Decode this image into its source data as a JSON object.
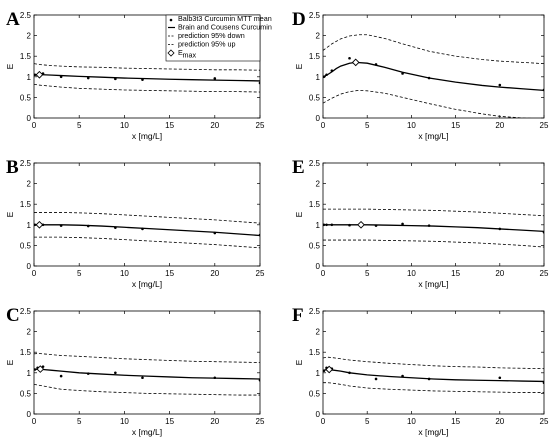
{
  "chart_data": [
    {
      "type": "line",
      "panel_label": "A",
      "xlabel": "x [mg/L]",
      "ylabel": "E",
      "xlim": [
        0,
        25
      ],
      "ylim": [
        0,
        2.5
      ],
      "x_ticks": [
        "0",
        "5",
        "10",
        "15",
        "20",
        "25"
      ],
      "y_ticks": [
        "0",
        "0.5",
        "1",
        "1.5",
        "2",
        "2.5"
      ],
      "grid": false,
      "legend_position": "top-right",
      "legend": [
        "Balb3t3 Curcumin MTT mean",
        "Brain and Cousens Curcumin",
        "prediction 95% down",
        "prediction 95% up",
        "E",
        "max"
      ],
      "series": [
        {
          "name": "Balb3t3 Curcumin MTT mean",
          "style": "markers",
          "x": [
            0.1,
            0.4,
            1,
            3,
            6,
            9,
            12,
            20,
            25
          ],
          "y": [
            1.05,
            1.04,
            1.08,
            1.0,
            0.97,
            0.95,
            0.93,
            0.96,
            0.85
          ]
        },
        {
          "name": "Brain and Cousens Curcumin",
          "style": "solid",
          "x": [
            0,
            0.5,
            1,
            2,
            3,
            5,
            7.5,
            10,
            12.5,
            15,
            17.5,
            20,
            22.5,
            25
          ],
          "y": [
            1.05,
            1.05,
            1.05,
            1.04,
            1.03,
            1.01,
            0.99,
            0.97,
            0.955,
            0.94,
            0.93,
            0.92,
            0.91,
            0.9
          ]
        },
        {
          "name": "prediction 95% down",
          "style": "dashed",
          "x": [
            0,
            0.5,
            1,
            2,
            3,
            5,
            7.5,
            10,
            12.5,
            15,
            17.5,
            20,
            22.5,
            25
          ],
          "y": [
            0.82,
            0.8,
            0.79,
            0.77,
            0.75,
            0.72,
            0.7,
            0.68,
            0.67,
            0.66,
            0.65,
            0.64,
            0.64,
            0.63
          ]
        },
        {
          "name": "prediction 95% up",
          "style": "dashed",
          "x": [
            0,
            0.5,
            1,
            2,
            3,
            5,
            7.5,
            10,
            12.5,
            15,
            17.5,
            20,
            22.5,
            25
          ],
          "y": [
            1.32,
            1.3,
            1.29,
            1.27,
            1.26,
            1.24,
            1.23,
            1.21,
            1.2,
            1.19,
            1.18,
            1.17,
            1.17,
            1.16
          ]
        },
        {
          "name": "E",
          "style": "diamond",
          "x": [
            0.6
          ],
          "y": [
            1.05
          ]
        }
      ]
    },
    {
      "type": "line",
      "panel_label": "B",
      "xlabel": "x [mg/L]",
      "ylabel": "E",
      "xlim": [
        0,
        25
      ],
      "ylim": [
        0,
        2.5
      ],
      "x_ticks": [
        "0",
        "5",
        "10",
        "15",
        "20",
        "25"
      ],
      "y_ticks": [
        "0",
        "0.5",
        "1",
        "1.5",
        "2",
        "2.5"
      ],
      "grid": false,
      "series": [
        {
          "style": "markers",
          "x": [
            0.1,
            0.4,
            1,
            3,
            6,
            9,
            12,
            20,
            25
          ],
          "y": [
            1.0,
            1.0,
            1.0,
            0.98,
            0.97,
            0.93,
            0.9,
            0.8,
            0.75
          ]
        },
        {
          "style": "solid",
          "x": [
            0,
            0.5,
            1,
            2,
            3,
            5,
            7.5,
            10,
            12.5,
            15,
            17.5,
            20,
            22.5,
            25
          ],
          "y": [
            1.0,
            1.0,
            1.0,
            1.0,
            1.0,
            0.99,
            0.97,
            0.94,
            0.91,
            0.88,
            0.85,
            0.82,
            0.78,
            0.74
          ]
        },
        {
          "style": "dashed",
          "x": [
            0,
            0.5,
            1,
            2,
            3,
            5,
            7.5,
            10,
            12.5,
            15,
            17.5,
            20,
            22.5,
            25
          ],
          "y": [
            0.7,
            0.7,
            0.7,
            0.7,
            0.7,
            0.69,
            0.67,
            0.64,
            0.61,
            0.58,
            0.55,
            0.52,
            0.48,
            0.44
          ]
        },
        {
          "style": "dashed",
          "x": [
            0,
            0.5,
            1,
            2,
            3,
            5,
            7.5,
            10,
            12.5,
            15,
            17.5,
            20,
            22.5,
            25
          ],
          "y": [
            1.3,
            1.3,
            1.3,
            1.3,
            1.3,
            1.29,
            1.27,
            1.24,
            1.21,
            1.18,
            1.15,
            1.12,
            1.08,
            1.04
          ]
        },
        {
          "style": "diamond",
          "x": [
            0.6
          ],
          "y": [
            1.0
          ]
        }
      ]
    },
    {
      "type": "line",
      "panel_label": "C",
      "xlabel": "x [mg/L]",
      "ylabel": "E",
      "xlim": [
        0,
        25
      ],
      "ylim": [
        0,
        2.5
      ],
      "x_ticks": [
        "0",
        "5",
        "10",
        "15",
        "20",
        "25"
      ],
      "y_ticks": [
        "0",
        "0.5",
        "1",
        "1.5",
        "2",
        "2.5"
      ],
      "grid": false,
      "series": [
        {
          "style": "markers",
          "x": [
            0.1,
            0.4,
            1,
            3,
            6,
            9,
            12,
            20,
            25
          ],
          "y": [
            1.08,
            1.12,
            1.15,
            0.92,
            0.98,
            1.0,
            0.88,
            0.88,
            0.82
          ]
        },
        {
          "style": "solid",
          "x": [
            0,
            0.5,
            1,
            2,
            3,
            5,
            7.5,
            10,
            12.5,
            15,
            17.5,
            20,
            22.5,
            25
          ],
          "y": [
            1.08,
            1.09,
            1.08,
            1.06,
            1.04,
            1.0,
            0.97,
            0.94,
            0.92,
            0.9,
            0.88,
            0.87,
            0.86,
            0.85
          ]
        },
        {
          "style": "dashed",
          "x": [
            0,
            0.5,
            1,
            2,
            3,
            5,
            7.5,
            10,
            12.5,
            15,
            17.5,
            20,
            22.5,
            25
          ],
          "y": [
            0.72,
            0.7,
            0.68,
            0.64,
            0.6,
            0.57,
            0.54,
            0.52,
            0.5,
            0.49,
            0.48,
            0.47,
            0.46,
            0.46
          ]
        },
        {
          "style": "dashed",
          "x": [
            0,
            0.5,
            1,
            2,
            3,
            5,
            7.5,
            10,
            12.5,
            15,
            17.5,
            20,
            22.5,
            25
          ],
          "y": [
            1.46,
            1.47,
            1.46,
            1.44,
            1.42,
            1.4,
            1.37,
            1.34,
            1.32,
            1.3,
            1.28,
            1.27,
            1.26,
            1.25
          ]
        },
        {
          "style": "diamond",
          "x": [
            0.7
          ],
          "y": [
            1.09
          ]
        }
      ]
    },
    {
      "type": "line",
      "panel_label": "D",
      "xlabel": "x [mg/L]",
      "ylabel": "E",
      "xlim": [
        0,
        25
      ],
      "ylim": [
        0,
        2.5
      ],
      "x_ticks": [
        "0",
        "5",
        "10",
        "15",
        "20",
        "25"
      ],
      "y_ticks": [
        "0",
        "0.5",
        "1",
        "1.5",
        "2",
        "2.5"
      ],
      "grid": false,
      "series": [
        {
          "style": "markers",
          "x": [
            0.1,
            0.4,
            1,
            3,
            6,
            9,
            12,
            20,
            25
          ],
          "y": [
            1.0,
            1.05,
            1.15,
            1.45,
            1.3,
            1.08,
            0.97,
            0.8,
            0.68
          ]
        },
        {
          "style": "solid",
          "x": [
            0,
            0.5,
            1,
            1.5,
            2,
            3,
            3.7,
            5,
            7,
            9,
            12,
            15,
            18,
            20,
            22.5,
            25
          ],
          "y": [
            1.0,
            1.05,
            1.12,
            1.2,
            1.26,
            1.33,
            1.35,
            1.33,
            1.23,
            1.11,
            0.97,
            0.87,
            0.79,
            0.75,
            0.71,
            0.67
          ]
        },
        {
          "style": "dashed",
          "x": [
            0,
            0.5,
            1,
            2,
            3,
            4,
            5,
            7,
            9,
            12,
            15,
            18,
            20,
            22.5,
            25
          ],
          "y": [
            0.36,
            0.42,
            0.48,
            0.58,
            0.64,
            0.67,
            0.66,
            0.6,
            0.5,
            0.35,
            0.21,
            0.1,
            0.04,
            0.0,
            -0.02
          ]
        },
        {
          "style": "dashed",
          "x": [
            0,
            0.5,
            1,
            2,
            3,
            4,
            5,
            7,
            9,
            12,
            15,
            18,
            20,
            22.5,
            25
          ],
          "y": [
            1.64,
            1.72,
            1.8,
            1.92,
            1.99,
            2.02,
            2.02,
            1.93,
            1.8,
            1.62,
            1.5,
            1.42,
            1.38,
            1.35,
            1.32
          ]
        },
        {
          "style": "diamond",
          "x": [
            3.7
          ],
          "y": [
            1.35
          ]
        }
      ]
    },
    {
      "type": "line",
      "panel_label": "E",
      "xlabel": "x [mg/L]",
      "ylabel": "E",
      "xlim": [
        0,
        25
      ],
      "ylim": [
        0,
        2.5
      ],
      "x_ticks": [
        "0",
        "5",
        "10",
        "15",
        "20",
        "25"
      ],
      "y_ticks": [
        "0",
        "0.5",
        "1",
        "1.5",
        "2",
        "2.5"
      ],
      "grid": false,
      "series": [
        {
          "style": "markers",
          "x": [
            0.1,
            0.4,
            1,
            3,
            6,
            9,
            12,
            20,
            25
          ],
          "y": [
            1.0,
            1.0,
            1.0,
            0.99,
            0.98,
            1.02,
            0.98,
            0.9,
            0.82
          ]
        },
        {
          "style": "solid",
          "x": [
            0,
            0.5,
            1,
            2,
            3,
            5,
            7.5,
            10,
            12.5,
            15,
            17.5,
            20,
            22.5,
            25
          ],
          "y": [
            1.0,
            1.0,
            1.0,
            1.0,
            1.0,
            1.0,
            0.99,
            0.98,
            0.97,
            0.95,
            0.93,
            0.9,
            0.87,
            0.84
          ]
        },
        {
          "style": "dashed",
          "x": [
            0,
            0.5,
            1,
            2,
            3,
            5,
            7.5,
            10,
            12.5,
            15,
            17.5,
            20,
            22.5,
            25
          ],
          "y": [
            0.63,
            0.63,
            0.63,
            0.63,
            0.63,
            0.63,
            0.62,
            0.61,
            0.6,
            0.58,
            0.56,
            0.53,
            0.5,
            0.46
          ]
        },
        {
          "style": "dashed",
          "x": [
            0,
            0.5,
            1,
            2,
            3,
            5,
            7.5,
            10,
            12.5,
            15,
            17.5,
            20,
            22.5,
            25
          ],
          "y": [
            1.38,
            1.38,
            1.38,
            1.38,
            1.38,
            1.38,
            1.37,
            1.36,
            1.35,
            1.33,
            1.31,
            1.28,
            1.25,
            1.22
          ]
        },
        {
          "style": "diamond",
          "x": [
            4.3
          ],
          "y": [
            1.0
          ]
        }
      ]
    },
    {
      "type": "line",
      "panel_label": "F",
      "xlabel": "x [mg/L]",
      "ylabel": "E",
      "xlim": [
        0,
        25
      ],
      "ylim": [
        0,
        2.5
      ],
      "x_ticks": [
        "0",
        "5",
        "10",
        "15",
        "20",
        "25"
      ],
      "y_ticks": [
        "0",
        "0.5",
        "1",
        "1.5",
        "2",
        "2.5"
      ],
      "grid": false,
      "series": [
        {
          "style": "markers",
          "x": [
            0.1,
            0.4,
            1,
            3,
            6,
            9,
            12,
            20,
            25
          ],
          "y": [
            1.05,
            1.12,
            1.1,
            1.0,
            0.85,
            0.92,
            0.85,
            0.88,
            0.76
          ]
        },
        {
          "style": "solid",
          "x": [
            0,
            0.5,
            1,
            2,
            3,
            5,
            7.5,
            10,
            12.5,
            15,
            17.5,
            20,
            22.5,
            25
          ],
          "y": [
            1.06,
            1.08,
            1.07,
            1.04,
            1.0,
            0.95,
            0.91,
            0.88,
            0.85,
            0.83,
            0.82,
            0.81,
            0.8,
            0.79
          ]
        },
        {
          "style": "dashed",
          "x": [
            0,
            0.5,
            1,
            2,
            3,
            5,
            7.5,
            10,
            12.5,
            15,
            17.5,
            20,
            22.5,
            25
          ],
          "y": [
            0.76,
            0.76,
            0.75,
            0.72,
            0.68,
            0.63,
            0.6,
            0.58,
            0.56,
            0.55,
            0.54,
            0.53,
            0.52,
            0.52
          ]
        },
        {
          "style": "dashed",
          "x": [
            0,
            0.5,
            1,
            2,
            3,
            5,
            7.5,
            10,
            12.5,
            15,
            17.5,
            20,
            22.5,
            25
          ],
          "y": [
            1.36,
            1.38,
            1.37,
            1.34,
            1.31,
            1.27,
            1.23,
            1.2,
            1.17,
            1.15,
            1.14,
            1.12,
            1.11,
            1.1
          ]
        },
        {
          "style": "diamond",
          "x": [
            0.7
          ],
          "y": [
            1.08
          ]
        }
      ]
    }
  ]
}
